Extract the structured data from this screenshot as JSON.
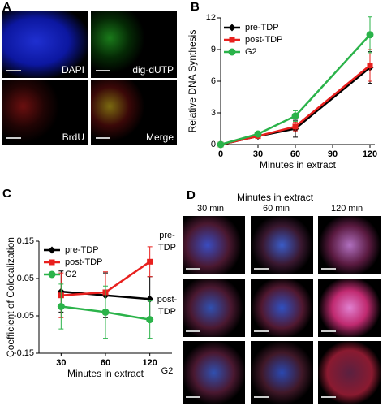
{
  "panel_labels": [
    "A",
    "B",
    "C",
    "D"
  ],
  "panel_a": {
    "labels": [
      "DAPI",
      "dig-dUTP",
      "BrdU",
      "Merge"
    ]
  },
  "panel_d": {
    "title": "Minutes in extract",
    "columns": [
      "30 min",
      "60 min",
      "120 min"
    ],
    "rows": [
      "pre-TDP",
      "post-TDP",
      "G2"
    ]
  },
  "chart_data": [
    {
      "type": "line",
      "x_label": "Minutes in extract",
      "y_label": "Relative DNA Synthesis",
      "x": [
        0,
        30,
        60,
        120
      ],
      "xlim": [
        0,
        120
      ],
      "xticks": [
        0,
        30,
        60,
        90,
        120
      ],
      "ylim": [
        0,
        12
      ],
      "yticks": [
        0,
        3,
        6,
        9,
        12
      ],
      "legend": "upper-left",
      "series": [
        {
          "name": "pre-TDP",
          "color": "#000000",
          "marker": "diamond",
          "values": [
            0,
            0.8,
            1.5,
            7.3
          ],
          "errors": [
            0,
            0.2,
            0.8,
            1.5
          ]
        },
        {
          "name": "post-TDP",
          "color": "#e8201e",
          "marker": "square",
          "values": [
            0,
            0.8,
            1.7,
            7.5
          ],
          "errors": [
            0,
            0.2,
            0.4,
            1.5
          ]
        },
        {
          "name": "G2",
          "color": "#2bb34a",
          "marker": "circle",
          "values": [
            0,
            1.0,
            2.7,
            10.4
          ],
          "errors": [
            0,
            0.2,
            0.5,
            1.7
          ]
        }
      ]
    },
    {
      "type": "line",
      "x_label": "Minutes in extract",
      "y_label": "Coefficient of Colocalization",
      "categories": [
        "30",
        "60",
        "120"
      ],
      "ylim": [
        -0.15,
        0.15
      ],
      "yticks": [
        -0.15,
        -0.05,
        0.05,
        0.15
      ],
      "legend": "upper-right",
      "series": [
        {
          "name": "pre-TDP",
          "color": "#000000",
          "marker": "diamond",
          "values": [
            0.015,
            0.005,
            -0.005
          ],
          "errors": [
            0.055,
            0.06,
            0.06
          ]
        },
        {
          "name": "post-TDP",
          "color": "#e8201e",
          "marker": "square",
          "values": [
            0.005,
            0.013,
            0.095
          ],
          "errors": [
            0.06,
            0.055,
            0.04
          ]
        },
        {
          "name": "G2",
          "color": "#2bb34a",
          "marker": "circle",
          "values": [
            -0.025,
            -0.04,
            -0.06
          ],
          "errors": [
            0.06,
            0.07,
            0.05
          ]
        }
      ]
    }
  ]
}
